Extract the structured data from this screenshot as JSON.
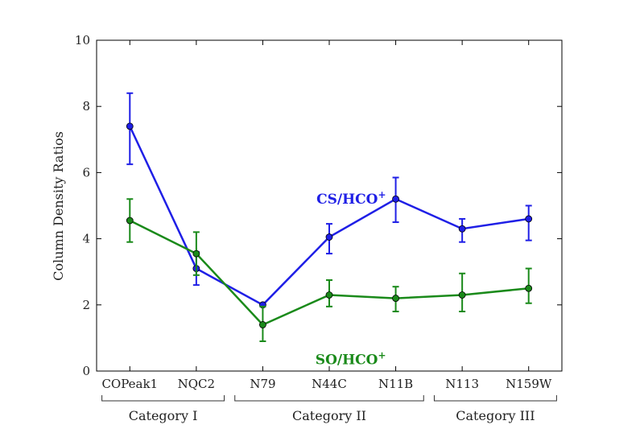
{
  "chart_data": {
    "type": "line",
    "ylabel": "Column Density Ratios",
    "xlabel": "",
    "ylim": [
      0,
      10
    ],
    "yticks": [
      0,
      2,
      4,
      6,
      8,
      10
    ],
    "yticks_text": [
      "0",
      "2",
      "4",
      "6",
      "8",
      "10"
    ],
    "categories": [
      "COPeak1",
      "NQC2",
      "N79",
      "N44C",
      "N11B",
      "N113",
      "N159W"
    ],
    "groups": [
      {
        "label": "Category I",
        "members": [
          "COPeak1",
          "NQC2"
        ]
      },
      {
        "label": "Category II",
        "members": [
          "N79",
          "N44C",
          "N11B"
        ]
      },
      {
        "label": "Category III",
        "members": [
          "N113",
          "N159W"
        ]
      }
    ],
    "series": [
      {
        "name": "CS/HCO",
        "name_sup": "+",
        "color": "#1f1fe6",
        "values": [
          7.4,
          3.1,
          2.0,
          4.05,
          5.2,
          4.3,
          4.6
        ],
        "err_low": [
          6.25,
          2.6,
          1.95,
          3.55,
          4.5,
          3.9,
          3.95
        ],
        "err_high": [
          8.4,
          3.6,
          2.05,
          4.45,
          5.85,
          4.6,
          5.0
        ]
      },
      {
        "name": "SO/HCO",
        "name_sup": "+",
        "color": "#1a8a1a",
        "values": [
          4.55,
          3.55,
          1.4,
          2.3,
          2.2,
          2.3,
          2.5
        ],
        "err_low": [
          3.9,
          2.9,
          0.9,
          1.95,
          1.8,
          1.8,
          2.05
        ],
        "err_high": [
          5.2,
          4.2,
          1.95,
          2.75,
          2.55,
          2.95,
          3.1
        ]
      }
    ]
  }
}
